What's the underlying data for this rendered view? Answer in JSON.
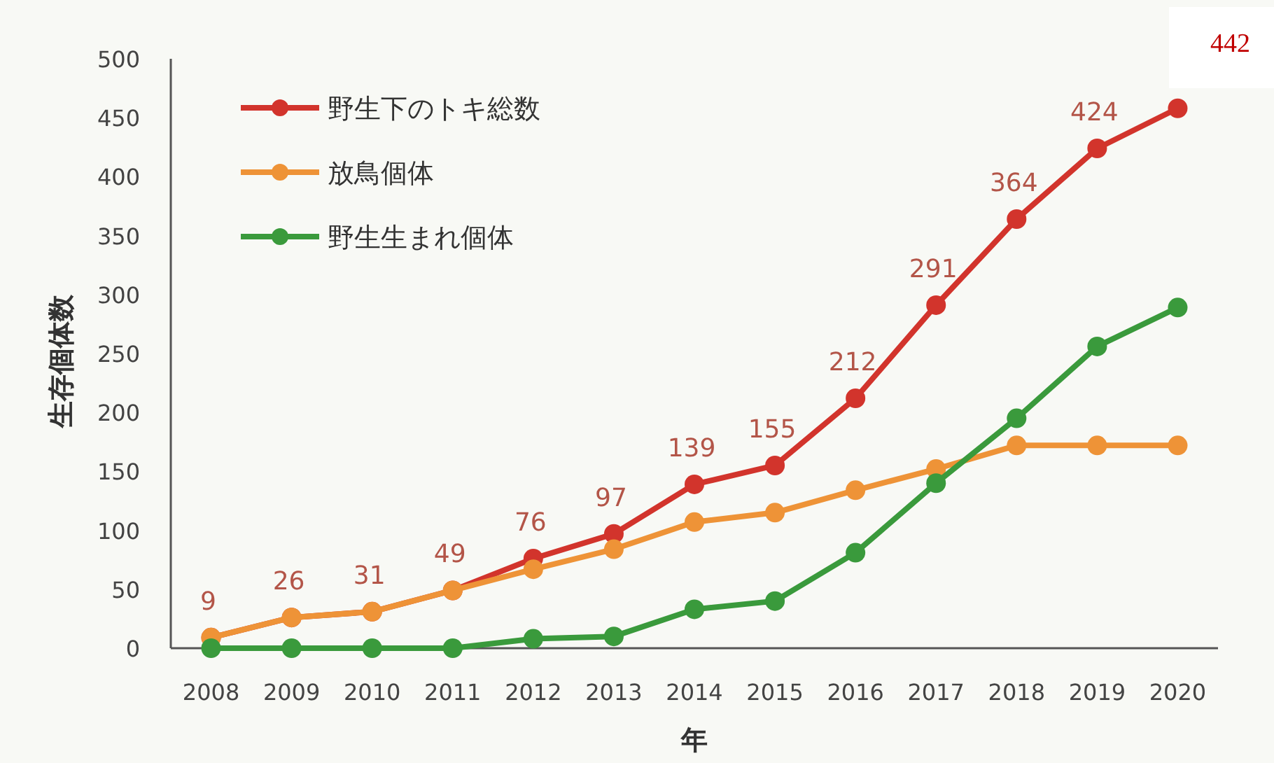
{
  "chart_data": {
    "type": "line",
    "xlabel": "年",
    "ylabel": "生存個体数",
    "categories": [
      "2008",
      "2009",
      "2010",
      "2011",
      "2012",
      "2013",
      "2014",
      "2015",
      "2016",
      "2017",
      "2018",
      "2019",
      "2020"
    ],
    "series": [
      {
        "name": "野生下のトキ総数",
        "color": "#d2342c",
        "values": [
          9,
          26,
          31,
          49,
          76,
          97,
          139,
          155,
          212,
          291,
          364,
          424,
          458
        ],
        "value_labels": [
          "9",
          "26",
          "31",
          "49",
          "76",
          "97",
          "139",
          "155",
          "212",
          "291",
          "364",
          "424",
          null
        ]
      },
      {
        "name": "放鳥個体",
        "color": "#ee9337",
        "values": [
          9,
          26,
          31,
          49,
          67,
          84,
          107,
          115,
          134,
          152,
          172,
          172,
          172
        ]
      },
      {
        "name": "野生生まれ個体",
        "color": "#3a9a3c",
        "values": [
          0,
          0,
          0,
          0,
          8,
          10,
          33,
          40,
          81,
          140,
          195,
          256,
          289
        ]
      }
    ],
    "ylim": [
      0,
      500
    ],
    "yticks": [
      0,
      50,
      100,
      150,
      200,
      250,
      300,
      350,
      400,
      450,
      500
    ],
    "grid": false,
    "legend": "top left",
    "marker": "circle",
    "line_style": "solid",
    "annotations": [
      "442"
    ]
  }
}
